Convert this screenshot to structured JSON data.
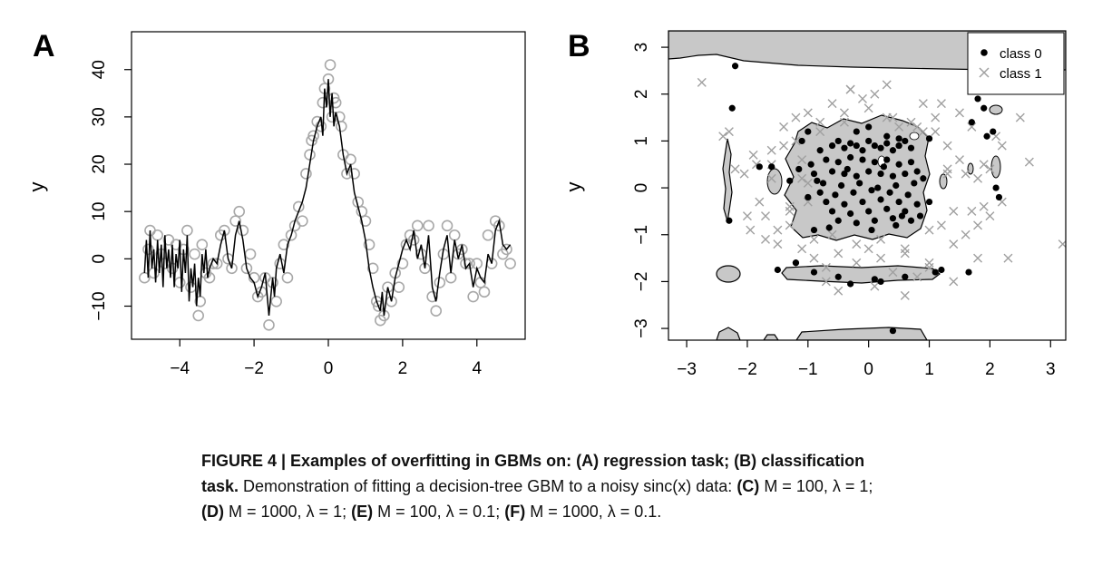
{
  "chart_data": [
    {
      "panel_label": "A",
      "type": "scatter",
      "xlabel": "",
      "ylabel": "y",
      "xlim": [
        -5.3,
        5.3
      ],
      "ylim": [
        -17,
        48
      ],
      "xticks": [
        -4,
        -2,
        0,
        2,
        4
      ],
      "xtick_labels": [
        "−4",
        "−2",
        "0",
        "2",
        "4"
      ],
      "yticks": [
        -10,
        0,
        10,
        20,
        30,
        40
      ],
      "ytick_labels": [
        "−10",
        "0",
        "10",
        "20",
        "30",
        "40"
      ],
      "grid": false,
      "legend": "none",
      "series": [
        {
          "role": "observed data (open grey circles)",
          "color": "#a8a8a8",
          "x": [
            -4.95,
            -4.85,
            -4.8,
            -4.7,
            -4.6,
            -4.5,
            -4.4,
            -4.3,
            -4.2,
            -4.1,
            -4.0,
            -3.9,
            -3.8,
            -3.7,
            -3.6,
            -3.5,
            -3.45,
            -3.4,
            -3.3,
            -3.2,
            -3.1,
            -3.0,
            -2.9,
            -2.8,
            -2.7,
            -2.6,
            -2.5,
            -2.4,
            -2.3,
            -2.2,
            -2.1,
            -2.0,
            -1.9,
            -1.8,
            -1.7,
            -1.6,
            -1.5,
            -1.4,
            -1.3,
            -1.2,
            -1.1,
            -1.0,
            -0.9,
            -0.8,
            -0.7,
            -0.6,
            -0.5,
            -0.45,
            -0.4,
            -0.3,
            -0.2,
            -0.15,
            -0.1,
            0.0,
            0.05,
            0.1,
            0.15,
            0.2,
            0.3,
            0.35,
            0.4,
            0.5,
            0.6,
            0.7,
            0.8,
            0.9,
            1.0,
            1.1,
            1.2,
            1.3,
            1.35,
            1.4,
            1.5,
            1.6,
            1.7,
            1.8,
            1.9,
            2.0,
            2.1,
            2.2,
            2.3,
            2.4,
            2.5,
            2.6,
            2.7,
            2.8,
            2.9,
            3.0,
            3.1,
            3.2,
            3.3,
            3.4,
            3.5,
            3.6,
            3.7,
            3.8,
            3.9,
            4.0,
            4.1,
            4.2,
            4.3,
            4.4,
            4.5,
            4.6,
            4.7,
            4.8,
            4.9
          ],
          "y": [
            -4,
            2,
            6,
            -3,
            5,
            1,
            -1,
            4,
            -2,
            3,
            -5,
            2,
            6,
            -6,
            1,
            -12,
            -9,
            3,
            -3,
            -4,
            -1,
            -1,
            5,
            6,
            0,
            -2,
            8,
            10,
            6,
            -2,
            1,
            -4,
            -8,
            -7,
            -4,
            -14,
            -5,
            -9,
            -1,
            3,
            -4,
            5,
            7,
            11,
            8,
            18,
            22,
            25,
            26,
            29,
            28,
            33,
            36,
            38,
            41,
            30,
            34,
            33,
            30,
            28,
            22,
            18,
            21,
            18,
            12,
            10,
            8,
            3,
            -2,
            -9,
            -10,
            -13,
            -12,
            -6,
            -9,
            -3,
            -6,
            -1,
            3,
            5,
            4,
            7,
            1,
            -2,
            7,
            -8,
            -11,
            -5,
            1,
            7,
            -4,
            5,
            1,
            2,
            -1,
            -1,
            -8,
            -1,
            -5,
            -7,
            5,
            -1,
            8,
            7,
            1,
            2,
            -1
          ]
        },
        {
          "role": "GBM fitted curve (black line)",
          "color": "#000000",
          "x": [
            -4.95,
            -4.9,
            -4.85,
            -4.8,
            -4.75,
            -4.7,
            -4.65,
            -4.6,
            -4.55,
            -4.5,
            -4.45,
            -4.4,
            -4.35,
            -4.3,
            -4.25,
            -4.2,
            -4.15,
            -4.1,
            -4.05,
            -4.0,
            -3.95,
            -3.9,
            -3.85,
            -3.8,
            -3.75,
            -3.7,
            -3.65,
            -3.6,
            -3.55,
            -3.5,
            -3.45,
            -3.4,
            -3.35,
            -3.3,
            -3.25,
            -3.2,
            -3.1,
            -3.0,
            -2.9,
            -2.8,
            -2.7,
            -2.6,
            -2.5,
            -2.4,
            -2.3,
            -2.2,
            -2.1,
            -2.0,
            -1.9,
            -1.8,
            -1.7,
            -1.6,
            -1.5,
            -1.45,
            -1.4,
            -1.3,
            -1.2,
            -1.1,
            -1.0,
            -0.9,
            -0.8,
            -0.7,
            -0.6,
            -0.5,
            -0.4,
            -0.3,
            -0.2,
            -0.15,
            -0.1,
            -0.05,
            0.0,
            0.05,
            0.1,
            0.15,
            0.2,
            0.3,
            0.4,
            0.5,
            0.6,
            0.7,
            0.8,
            0.9,
            1.0,
            1.1,
            1.2,
            1.3,
            1.4,
            1.45,
            1.5,
            1.6,
            1.7,
            1.8,
            1.9,
            2.0,
            2.1,
            2.2,
            2.3,
            2.4,
            2.5,
            2.6,
            2.7,
            2.8,
            2.9,
            3.0,
            3.1,
            3.2,
            3.3,
            3.4,
            3.5,
            3.6,
            3.7,
            3.8,
            3.9,
            4.0,
            4.1,
            4.2,
            4.3,
            4.4,
            4.5,
            4.6,
            4.7,
            4.8,
            4.9
          ],
          "y": [
            -3,
            4,
            -4,
            6,
            -2,
            2,
            -5,
            4,
            -3,
            3,
            -6,
            5,
            -2,
            2,
            -4,
            3,
            -6,
            1,
            -2,
            4,
            -7,
            2,
            -3,
            5,
            -9,
            -2,
            -6,
            -1,
            -10,
            -4,
            -8,
            1,
            -3,
            2,
            -4,
            -2,
            0,
            -1,
            3,
            6,
            0,
            -2,
            5,
            8,
            4,
            -2,
            -4,
            -5,
            -8,
            -6,
            -3,
            -12,
            -4,
            -8,
            -2,
            1,
            -3,
            3,
            5,
            8,
            10,
            12,
            15,
            20,
            25,
            28,
            30,
            26,
            36,
            32,
            38,
            30,
            35,
            28,
            31,
            28,
            22,
            18,
            20,
            14,
            11,
            8,
            4,
            -2,
            -6,
            -9,
            -11,
            -7,
            -12,
            -6,
            -9,
            -4,
            -1,
            2,
            4,
            2,
            6,
            0,
            3,
            -2,
            5,
            -6,
            -9,
            -3,
            2,
            5,
            -3,
            4,
            0,
            3,
            -2,
            -1,
            -6,
            -2,
            -4,
            -5,
            1,
            -1,
            6,
            8,
            3,
            2,
            3
          ]
        }
      ]
    },
    {
      "panel_label": "B",
      "type": "scatter",
      "xlabel": "",
      "ylabel": "y",
      "xlim": [
        -3.3,
        3.25
      ],
      "ylim": [
        -3.25,
        3.35
      ],
      "xticks": [
        -3,
        -2,
        -1,
        0,
        1,
        2,
        3
      ],
      "xtick_labels": [
        "−3",
        "−2",
        "−1",
        "0",
        "1",
        "2",
        "3"
      ],
      "yticks": [
        -3,
        -2,
        -1,
        0,
        1,
        2,
        3
      ],
      "ytick_labels": [
        "−3",
        "−2",
        "−1",
        "0",
        "1",
        "2",
        "3"
      ],
      "grid": false,
      "legend": "top-right",
      "legend_entries": [
        "class 0",
        "class 1"
      ],
      "series": [
        {
          "name": "class 0",
          "marker": "filled circle",
          "color": "#000000",
          "x": [
            -0.8,
            -0.6,
            -0.5,
            -0.4,
            -0.3,
            -0.2,
            -0.1,
            0.0,
            0.1,
            0.2,
            0.3,
            0.4,
            0.5,
            0.6,
            0.7,
            -0.7,
            -0.5,
            -0.3,
            -0.1,
            0.1,
            0.3,
            0.5,
            0.7,
            -0.9,
            -0.6,
            -0.4,
            -0.2,
            0.0,
            0.2,
            0.4,
            0.6,
            0.8,
            -0.75,
            -0.45,
            -0.15,
            0.15,
            0.45,
            0.75,
            -0.8,
            -0.55,
            -0.25,
            0.05,
            0.35,
            0.65,
            -0.7,
            -0.4,
            -0.1,
            0.2,
            0.5,
            0.8,
            -0.6,
            -0.3,
            0.0,
            0.3,
            0.6,
            -0.5,
            -0.2,
            0.1,
            0.4,
            0.7,
            -0.85,
            -0.35,
            0.25,
            0.55,
            -0.65,
            0.05,
            0.45,
            -0.95,
            0.9,
            -1.0,
            1.0,
            -0.9,
            0.85,
            -1.15,
            -1.1,
            -1.0,
            0.0,
            0.3,
            -0.2,
            0.5,
            -1.2,
            -0.9,
            -0.5,
            0.2,
            0.6,
            1.1,
            1.2,
            -1.5,
            -1.2,
            -0.3,
            0.1,
            0.4,
            1.65,
            1.7,
            1.8,
            2.1,
            2.15,
            1.95,
            1.9,
            2.05,
            -2.3,
            -2.25,
            -2.2,
            -1.3,
            0.5,
            1.0,
            -1.6,
            -1.8
          ],
          "y": [
            0.8,
            0.9,
            1.0,
            0.85,
            0.95,
            0.9,
            0.8,
            1.0,
            0.9,
            0.85,
            0.95,
            0.8,
            0.9,
            1.0,
            0.85,
            0.6,
            0.55,
            0.65,
            0.6,
            0.55,
            0.6,
            0.5,
            0.55,
            0.3,
            0.35,
            0.3,
            0.25,
            0.35,
            0.3,
            0.25,
            0.3,
            0.35,
            0.1,
            0.05,
            0.1,
            0.0,
            0.05,
            0.1,
            -0.1,
            -0.15,
            -0.1,
            -0.05,
            -0.1,
            -0.15,
            -0.3,
            -0.35,
            -0.3,
            -0.25,
            -0.3,
            -0.35,
            -0.5,
            -0.55,
            -0.5,
            -0.45,
            -0.5,
            -0.7,
            -0.75,
            -0.7,
            -0.65,
            -0.7,
            0.15,
            0.4,
            0.45,
            -0.6,
            -0.85,
            -0.9,
            -0.8,
            0.5,
            0.2,
            -0.2,
            -0.3,
            -0.9,
            -0.6,
            0.4,
            1.0,
            1.2,
            1.3,
            1.1,
            1.2,
            0.9,
            -1.6,
            -1.8,
            -1.9,
            -2.0,
            -1.9,
            -1.8,
            -1.75,
            -1.75,
            -1.6,
            -2.05,
            -1.95,
            -3.05,
            -1.8,
            1.4,
            1.9,
            0.0,
            -0.2,
            1.1,
            1.7,
            1.2,
            -0.7,
            1.7,
            2.6,
            0.15,
            1.05,
            1.05,
            0.45,
            0.45
          ],
          "observation": "dense cluster of filled black points centred on the origin"
        },
        {
          "name": "class 1",
          "marker": "x",
          "color": "#a0a0a0",
          "x": [
            -2.75,
            -2.4,
            -2.2,
            -2.05,
            -1.95,
            -1.85,
            -1.7,
            -1.6,
            -1.5,
            -1.4,
            -1.3,
            -1.2,
            -1.1,
            -1.0,
            -0.9,
            -0.8,
            -0.7,
            -0.6,
            -0.5,
            -0.4,
            -0.3,
            -0.2,
            -0.1,
            0.0,
            0.1,
            0.2,
            0.3,
            0.4,
            0.5,
            0.6,
            0.7,
            0.8,
            0.9,
            1.0,
            1.1,
            1.2,
            1.3,
            1.4,
            1.5,
            1.6,
            1.7,
            1.8,
            1.9,
            2.0,
            2.1,
            2.2,
            2.3,
            2.5,
            2.65,
            3.2,
            -1.8,
            -1.6,
            -1.3,
            -1.1,
            -0.9,
            -0.6,
            -0.2,
            0.2,
            0.6,
            1.0,
            1.3,
            1.6,
            1.9,
            2.2,
            -2.0,
            -1.5,
            -1.2,
            -1.0,
            1.2,
            1.4,
            1.8,
            2.0,
            -1.9,
            -1.7,
            -1.4,
            -1.1,
            -0.8,
            -0.4,
            0.0,
            0.4,
            0.8,
            1.1,
            1.5,
            1.8,
            -1.6,
            -1.3,
            -1.0,
            1.0,
            1.3,
            1.7,
            -0.5,
            0.1,
            0.6,
            1.4,
            -2.3,
            2.4,
            -0.3,
            0.3,
            -0.7,
            0.9
          ],
          "y": [
            2.25,
            1.1,
            0.4,
            0.3,
            -0.9,
            0.5,
            -0.6,
            0.8,
            -1.2,
            1.3,
            -0.5,
            1.5,
            0.2,
            1.6,
            -1.5,
            1.4,
            -1.7,
            1.8,
            -1.4,
            1.6,
            2.1,
            -1.6,
            1.9,
            -1.3,
            2.0,
            -1.5,
            1.5,
            -1.8,
            1.3,
            -1.4,
            1.4,
            -1.9,
            1.2,
            -1.6,
            1.5,
            -0.8,
            0.9,
            -1.2,
            0.6,
            -1.0,
            1.3,
            -1.5,
            0.5,
            -0.6,
            1.1,
            -0.3,
            -1.5,
            1.5,
            0.55,
            -1.2,
            -0.3,
            0.2,
            -0.8,
            0.6,
            -1.1,
            -1.0,
            -1.2,
            -1.1,
            -1.3,
            -0.9,
            0.4,
            0.3,
            -0.4,
            0.9,
            -0.6,
            -0.9,
            1.0,
            -0.3,
            1.8,
            -0.5,
            -0.8,
            0.4,
            0.7,
            -1.1,
            0.9,
            -1.3,
            1.2,
            1.4,
            1.7,
            1.5,
            1.3,
            1.2,
            1.6,
            0.2,
            0.5,
            -0.4,
            0.1,
            -1.7,
            0.3,
            -0.5,
            -2.2,
            -2.1,
            -2.3,
            -2.0,
            1.2,
            2.4,
            2.1,
            2.2,
            -2.0,
            1.8
          ],
          "observation": "grey crosses spread widely around the class 0 cluster"
        },
        {
          "name": "",
          "role": "predicted class-0 regions (grey filled, black outline)",
          "color": "#c8c8c8",
          "observation": "large irregular region over the central cluster plus thin spurious strips near y = -1.8, y = -3 and x = -2.3, and a band along the top edge"
        }
      ]
    }
  ],
  "figure": {
    "panel_a_label": "A",
    "panel_b_label": "B"
  },
  "caption": {
    "title": "FIGURE 4 | Examples of overfitting in GBMs on: (A) regression task; (B) classification task.",
    "lead": "Demonstration of fitting a decision-tree GBM to a noisy sinc(x) data:",
    "c": "(C)",
    "c_text": " M = 100, λ = 1;",
    "d": "(D)",
    "d_text": " M = 1000, λ = 1;",
    "e": "(E)",
    "e_text": " M = 100, λ = 0.1;",
    "f": "(F)",
    "f_text": " M = 1000, λ = 0.1."
  }
}
